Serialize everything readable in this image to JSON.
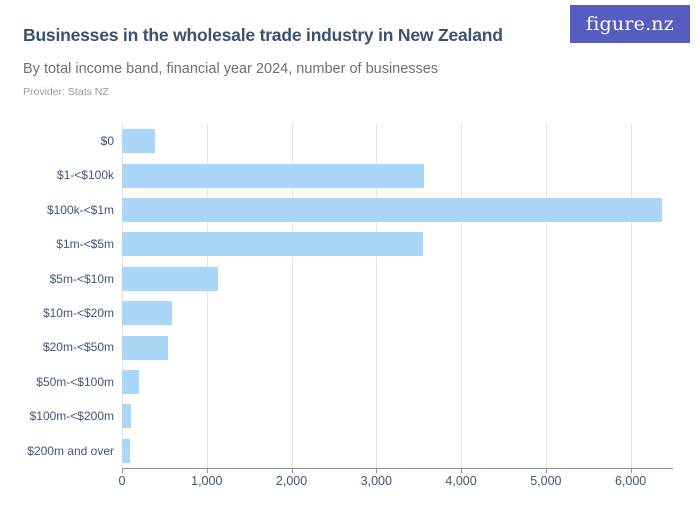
{
  "header": {
    "title": "Businesses in the wholesale trade industry in New Zealand",
    "subtitle": "By total income band, financial year 2024,  number of businesses",
    "provider": "Provider: Stats NZ",
    "logo_text": "figure.nz"
  },
  "colors": {
    "bar": "#aad6f7",
    "title_text": "#39536e",
    "subtitle_text": "#707070",
    "provider_text": "#9b9b9b",
    "axis_text": "#3d5878",
    "gridline": "#e4e4e4",
    "axis_line": "#8f8f8f",
    "logo_background": "#575cc1",
    "logo_text_color": "#ffffff"
  },
  "chart_data": {
    "type": "bar",
    "orientation": "horizontal",
    "title": "Businesses in the wholesale trade industry in New Zealand",
    "subtitle": "By total income band, financial year 2024, number of businesses",
    "provider": "Stats NZ",
    "categories": [
      "$0",
      "$1-<$100k",
      "$100k-<$1m",
      "$1m-<$5m",
      "$5m-<$10m",
      "$10m-<$20m",
      "$20m-<$50m",
      "$50m-<$100m",
      "$100m-<$200m",
      "$200m and over"
    ],
    "values": [
      390,
      3560,
      6370,
      3550,
      1130,
      590,
      540,
      200,
      105,
      95
    ],
    "xlabel": "",
    "ylabel": "",
    "xlim": [
      0,
      6500
    ],
    "xticks": [
      0,
      1000,
      2000,
      3000,
      4000,
      5000,
      6000
    ],
    "xtick_labels": [
      "0",
      "1,000",
      "2,000",
      "3,000",
      "4,000",
      "5,000",
      "6,000"
    ],
    "grid": true,
    "legend": false
  }
}
